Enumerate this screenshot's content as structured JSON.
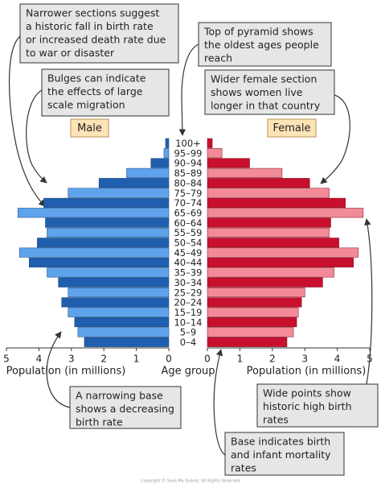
{
  "chart_data": {
    "type": "population-pyramid",
    "categories": [
      "100+",
      "95–99",
      "90–94",
      "85–89",
      "80–84",
      "75–79",
      "70–74",
      "65–69",
      "60–64",
      "55–59",
      "50–54",
      "45–49",
      "40–44",
      "35–39",
      "30–34",
      "25–29",
      "20–24",
      "15–19",
      "10–14",
      "5–9",
      "0–4"
    ],
    "series": [
      {
        "name": "Male",
        "colors": [
          "#1f5fae",
          "#5ea3ec"
        ],
        "values": [
          0.1,
          0.15,
          0.55,
          1.3,
          2.15,
          3.1,
          3.85,
          4.65,
          3.8,
          3.75,
          4.05,
          4.6,
          4.3,
          3.75,
          3.4,
          3.1,
          3.3,
          3.1,
          2.9,
          2.8,
          2.6
        ]
      },
      {
        "name": "Female",
        "colors": [
          "#c8102e",
          "#f28a98"
        ],
        "values": [
          0.15,
          0.45,
          1.3,
          2.3,
          3.15,
          3.75,
          4.25,
          4.8,
          3.8,
          3.75,
          4.05,
          4.65,
          4.5,
          3.9,
          3.55,
          3.0,
          2.9,
          2.8,
          2.75,
          2.65,
          2.45
        ]
      }
    ],
    "xlim": [
      0,
      5
    ],
    "xticks": [
      0,
      1,
      2,
      3,
      4,
      5
    ],
    "xlabel": "Population (in millions)",
    "category_label": "Age group",
    "annotations": [
      [
        "Narrower sections suggest",
        "a historic fall in birth rate",
        "or increased death rate due",
        "to war or disaster"
      ],
      [
        "Bulges can indicate",
        "the effects of large",
        "scale migration"
      ],
      [
        "Top of pyramid shows",
        "the oldest ages people",
        "reach"
      ],
      [
        "Wider female section",
        "shows women live",
        "longer in that country"
      ],
      [
        "A narrowing base",
        "shows a decreasing",
        "birth rate"
      ],
      [
        "Wide points show",
        "historic high birth",
        "rates"
      ],
      [
        "Base indicates birth",
        "and infant mortality",
        "rates"
      ]
    ],
    "copyright": "Copyright © Save My Exams. All Rights Reserved"
  }
}
